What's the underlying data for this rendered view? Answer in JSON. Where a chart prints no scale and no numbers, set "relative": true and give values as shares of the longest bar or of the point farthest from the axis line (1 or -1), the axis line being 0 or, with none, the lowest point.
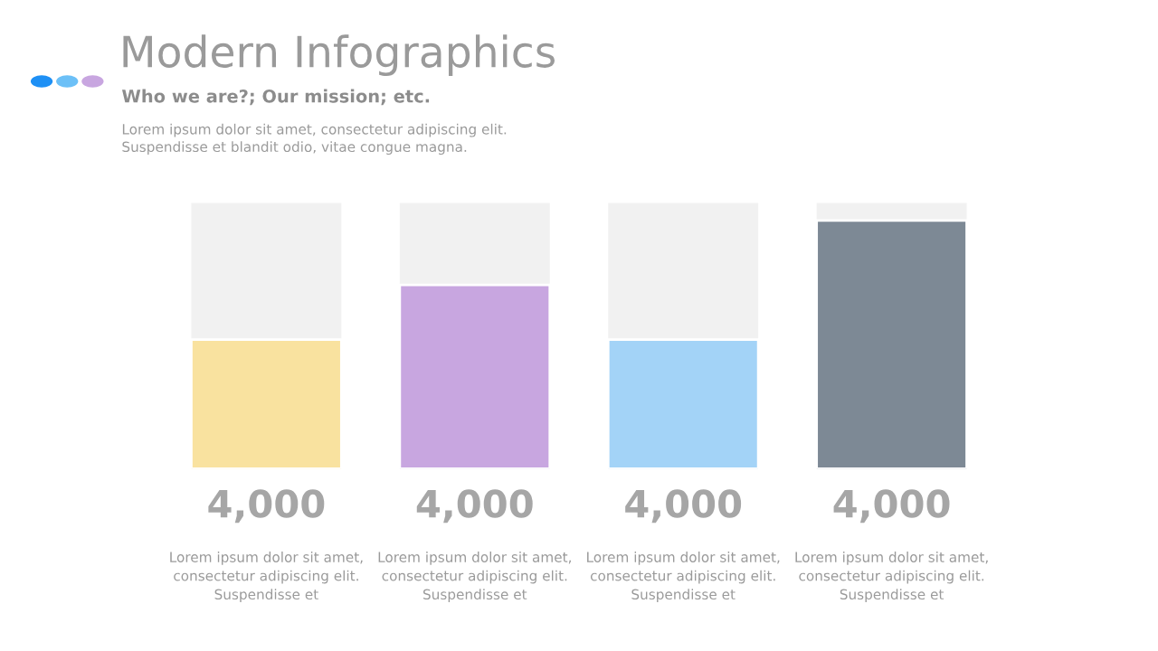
{
  "chart_data": {
    "type": "bar",
    "title": "Modern Infographics",
    "subtitle": "Who we are?; Our mission; etc.",
    "categories": [
      null,
      null,
      null,
      null
    ],
    "relative": true,
    "values": [
      0.52,
      0.74,
      0.52,
      1
    ],
    "colors": [
      "#f9e29f",
      "#c8a6e0",
      "#a3d3f7",
      "#7d8995"
    ],
    "annotations": [
      "Lorem ipsum dolor sit amet, consectetur adipiscing elit.\nSuspendisse et blandit odio, vitae congue magna.",
      "4,000",
      "Lorem ipsum dolor sit amet,\nconsectetur adipiscing elit.\nSuspendisse et",
      "4,000",
      "Lorem ipsum dolor sit amet,\nconsectetur adipiscing elit.\nSuspendisse et",
      "4,000",
      "Lorem ipsum dolor sit amet,\nconsectetur adipiscing elit.\nSuspendisse et",
      "4,000",
      "Lorem ipsum dolor sit amet,\nconsectetur adipiscing elit.\nSuspendisse et"
    ],
    "grid": false,
    "legend": false
  }
}
